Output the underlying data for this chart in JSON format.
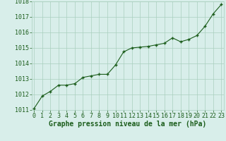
{
  "x": [
    0,
    1,
    2,
    3,
    4,
    5,
    6,
    7,
    8,
    9,
    10,
    11,
    12,
    13,
    14,
    15,
    16,
    17,
    18,
    19,
    20,
    21,
    22,
    23
  ],
  "y": [
    1011.1,
    1011.9,
    1012.2,
    1012.6,
    1012.6,
    1012.7,
    1013.1,
    1013.2,
    1013.3,
    1013.3,
    1013.9,
    1014.75,
    1015.0,
    1015.05,
    1015.1,
    1015.2,
    1015.3,
    1015.65,
    1015.4,
    1015.55,
    1015.8,
    1016.4,
    1017.2,
    1017.8
  ],
  "ylim": [
    1011,
    1018
  ],
  "yticks": [
    1011,
    1012,
    1013,
    1014,
    1015,
    1016,
    1017,
    1018
  ],
  "xticks": [
    0,
    1,
    2,
    3,
    4,
    5,
    6,
    7,
    8,
    9,
    10,
    11,
    12,
    13,
    14,
    15,
    16,
    17,
    18,
    19,
    20,
    21,
    22,
    23
  ],
  "xlabel": "Graphe pression niveau de la mer (hPa)",
  "line_color": "#1a5c1a",
  "marker": "+",
  "marker_color": "#1a5c1a",
  "bg_plot": "#d8eeea",
  "bg_figure": "#d8eeea",
  "grid_color": "#aacfbe",
  "tick_color": "#1a5c1a",
  "xlabel_color": "#1a5c1a",
  "xlabel_fontsize": 7,
  "tick_fontsize": 6,
  "linewidth": 0.8,
  "markersize": 3.5,
  "marker_linewidth": 1.0
}
